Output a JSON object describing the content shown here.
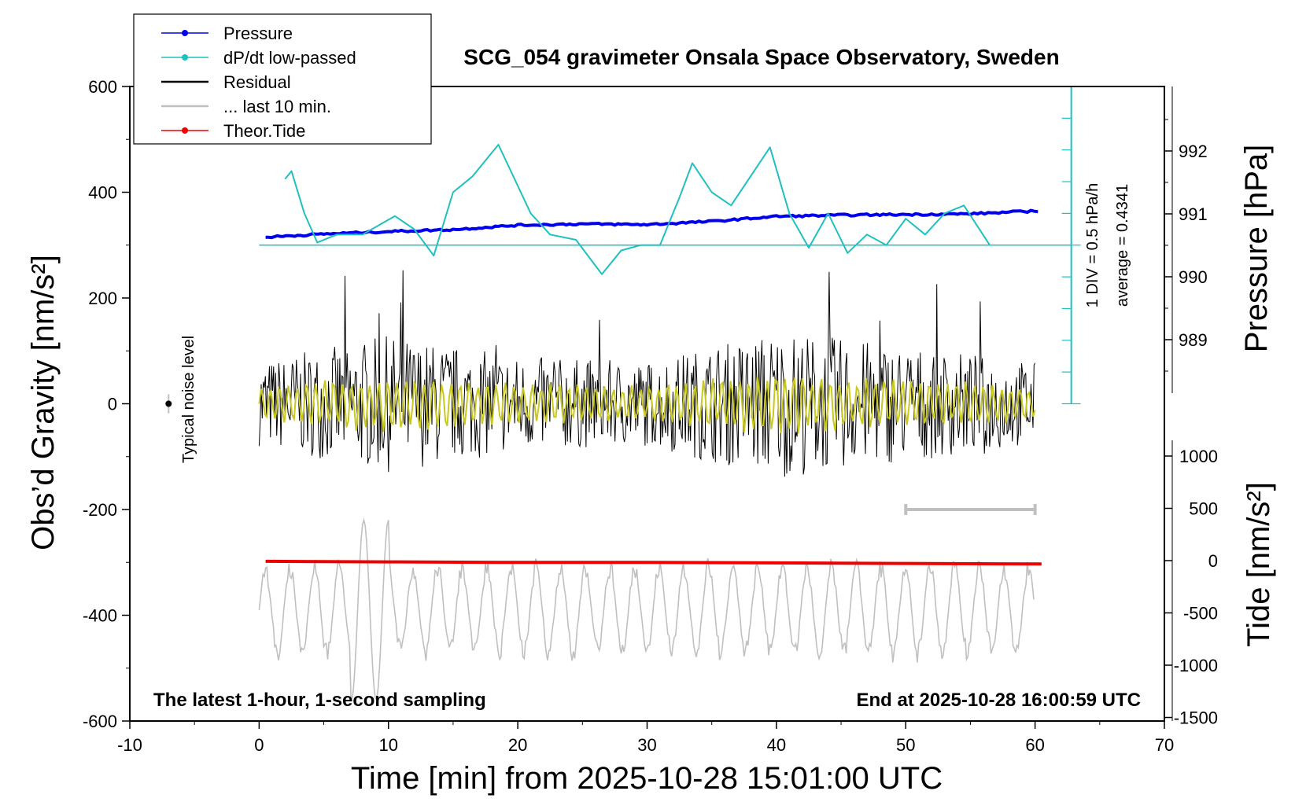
{
  "chart_data": {
    "type": "line",
    "title": "SCG_054 gravimeter Onsala Space Observatory, Sweden",
    "note_left": "The latest 1-hour, 1-second sampling",
    "note_right": "End at 2025-10-28 16:00:59 UTC",
    "xlabel": "Time [min] from 2025-10-28 15:01:00 UTC",
    "ylabel_left": "Obs’d Gravity [nm/s²]",
    "ylabel_right_top": "Pressure [hPa]",
    "ylabel_right_bottom": "Tide [nm/s²]",
    "xlim": [
      -10,
      70
    ],
    "ylim_left": [
      -600,
      600
    ],
    "x_ticks": [
      "-10",
      "0",
      "10",
      "20",
      "30",
      "40",
      "50",
      "60",
      "70"
    ],
    "y_ticks_left": [
      "-600",
      "-400",
      "-200",
      "0",
      "200",
      "400",
      "600"
    ],
    "pressure_ticks": [
      "989",
      "990",
      "991",
      "992"
    ],
    "tide_ticks": [
      "-1500",
      "-1000",
      "-500",
      "0",
      "500",
      "1000"
    ],
    "dpdt_scale_label": "1 DIV = 0.5 hPa/h",
    "dpdt_average_label": "average = 0.4341",
    "noise_label": "Typical noise level",
    "legend": [
      {
        "label": "Pressure",
        "color": "#0000ee",
        "marker": true
      },
      {
        "label": "dP/dt low-passed",
        "color": "#20c0c0",
        "marker": true
      },
      {
        "label": "Residual",
        "color": "#000000",
        "marker": false
      },
      {
        "label": "... last 10 min.",
        "color": "#c0c0c0",
        "marker": false
      },
      {
        "label": "Theor.Tide",
        "color": "#ee0000",
        "marker": true
      }
    ],
    "series": [
      {
        "name": "Pressure",
        "color": "#0000ee",
        "axis": "pressure",
        "x": [
          0.5,
          5,
          10,
          15,
          20,
          25,
          30,
          35,
          40,
          45,
          50,
          55,
          60.5
        ],
        "y": [
          990.63,
          990.68,
          990.72,
          990.75,
          990.82,
          990.84,
          990.83,
          990.88,
          990.96,
          990.98,
          990.99,
          991.0,
          991.05
        ]
      },
      {
        "name": "dP/dt low-passed",
        "color": "#20c0c0",
        "axis": "gravity",
        "x": [
          2,
          2.5,
          3.5,
          4.5,
          6,
          8,
          10.5,
          12,
          13.5,
          15,
          16.5,
          18.5,
          21,
          22.5,
          24.5,
          26.5,
          28,
          29.5,
          31,
          32.5,
          33.5,
          35,
          36.5,
          38,
          39.5,
          41,
          42.5,
          44,
          45.5,
          47,
          48.5,
          50,
          51.5,
          53,
          54.5,
          56.5
        ],
        "y": [
          425,
          440,
          360,
          305,
          320,
          320,
          355,
          330,
          280,
          400,
          430,
          490,
          360,
          320,
          310,
          245,
          290,
          300,
          300,
          390,
          455,
          400,
          375,
          430,
          485,
          360,
          295,
          360,
          285,
          320,
          300,
          350,
          320,
          360,
          375,
          300
        ]
      },
      {
        "name": "Theor.Tide",
        "color": "#ee0000",
        "axis": "gravity",
        "x": [
          0.5,
          10,
          20,
          30,
          40,
          50,
          60.5
        ],
        "y": [
          -298,
          -299,
          -300,
          -300,
          -301,
          -302,
          -303
        ]
      }
    ],
    "residual_envelope": {
      "x": [
        0,
        10,
        20,
        30,
        40,
        50,
        60
      ],
      "amplitude": [
        80,
        130,
        90,
        80,
        140,
        110,
        80
      ]
    },
    "last10min_bar": {
      "x": [
        50,
        60
      ],
      "y": -200
    }
  }
}
